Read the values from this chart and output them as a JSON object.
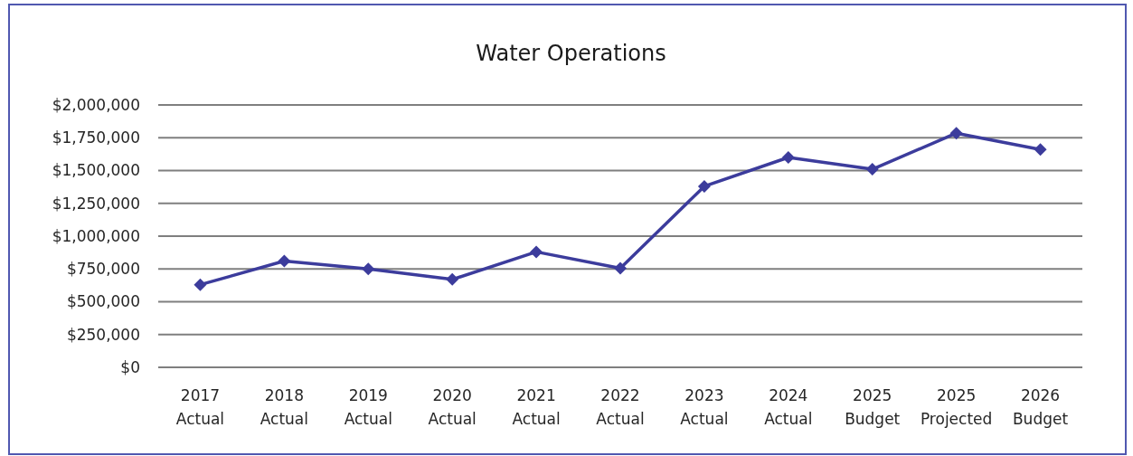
{
  "chart_data": {
    "type": "line",
    "title": "Water Operations",
    "categories": [
      "2017 Actual",
      "2018 Actual",
      "2019 Actual",
      "2020 Actual",
      "2021 Actual",
      "2022 Actual",
      "2023 Actual",
      "2024 Actual",
      "2025 Budget",
      "2025 Projected",
      "2026 Budget"
    ],
    "series": [
      {
        "color": "#3c3c9c",
        "values": [
          630000,
          810000,
          750000,
          670000,
          880000,
          755000,
          1380000,
          1600000,
          1510000,
          1785000,
          1660000
        ]
      }
    ],
    "ylim": [
      0,
      2000000
    ],
    "yticks": [
      {
        "value": 0,
        "label": "$0"
      },
      {
        "value": 250000,
        "label": "$250,000"
      },
      {
        "value": 500000,
        "label": "$500,000"
      },
      {
        "value": 750000,
        "label": "$750,000"
      },
      {
        "value": 1000000,
        "label": "$1,000,000"
      },
      {
        "value": 1250000,
        "label": "$1,250,000"
      },
      {
        "value": 1500000,
        "label": "$1,500,000"
      },
      {
        "value": 1750000,
        "label": "$1,750,000"
      },
      {
        "value": 2000000,
        "label": "$2,000,000"
      }
    ],
    "grid": "y",
    "marker": "diamond",
    "line_style": "solid"
  }
}
